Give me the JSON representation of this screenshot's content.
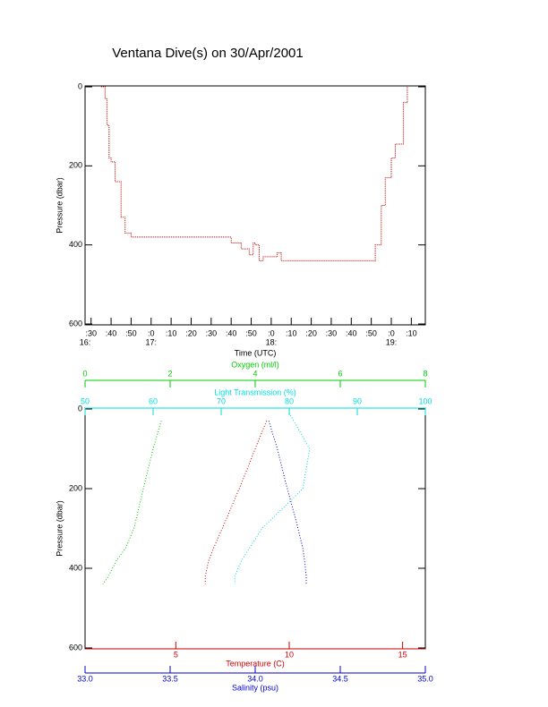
{
  "chart_data": [
    {
      "type": "line",
      "title": "Ventana Dive(s) on 30/Apr/2001",
      "xlabel": "Time (UTC)",
      "ylabel": "Pressure (dbar)",
      "xlim": [
        "16:27",
        "19:17"
      ],
      "ylim": [
        0,
        600
      ],
      "y_reversed": true,
      "xticks": [
        {
          "value": "16:30",
          "label": ":30"
        },
        {
          "value": "16:40",
          "label": ":40"
        },
        {
          "value": "16:50",
          "label": ":50"
        },
        {
          "value": "17:00",
          "label": ":0"
        },
        {
          "value": "17:10",
          "label": ":10"
        },
        {
          "value": "17:20",
          "label": ":20"
        },
        {
          "value": "17:30",
          "label": ":30"
        },
        {
          "value": "17:40",
          "label": ":40"
        },
        {
          "value": "17:50",
          "label": ":50"
        },
        {
          "value": "18:00",
          "label": ":0"
        },
        {
          "value": "18:10",
          "label": ":10"
        },
        {
          "value": "18:20",
          "label": ":20"
        },
        {
          "value": "18:30",
          "label": ":30"
        },
        {
          "value": "18:40",
          "label": ":40"
        },
        {
          "value": "18:50",
          "label": ":50"
        },
        {
          "value": "19:00",
          "label": ":0"
        },
        {
          "value": "19:10",
          "label": ":10"
        }
      ],
      "hour_labels": [
        {
          "value": "16:27",
          "label": "16:"
        },
        {
          "value": "17:00",
          "label": "17:"
        },
        {
          "value": "18:00",
          "label": "18:"
        },
        {
          "value": "19:00",
          "label": "19:"
        }
      ],
      "yticks": [
        0,
        200,
        400,
        600
      ],
      "series": [
        {
          "color": "#cc0000",
          "x": [
            "16:35",
            "16:37",
            "16:38",
            "16:39",
            "16:40",
            "16:42",
            "16:45",
            "16:47",
            "16:50",
            "17:36",
            "17:40",
            "17:45",
            "17:49",
            "17:51",
            "17:52",
            "17:54",
            "17:56",
            "18:00",
            "18:03",
            "18:05",
            "18:10",
            "18:50",
            "18:52",
            "18:55",
            "18:57",
            "19:00",
            "19:02",
            "19:06",
            "19:08"
          ],
          "values": [
            0,
            30,
            97,
            180,
            190,
            240,
            330,
            370,
            380,
            380,
            395,
            410,
            425,
            395,
            400,
            440,
            430,
            430,
            420,
            440,
            440,
            440,
            400,
            300,
            230,
            180,
            145,
            40,
            0
          ]
        }
      ]
    },
    {
      "type": "profile",
      "ylabel": "Pressure (dbar)",
      "ylim": [
        0,
        600
      ],
      "y_reversed": true,
      "yticks": [
        0,
        200,
        400,
        600
      ],
      "x_axes": [
        {
          "label": "Oxygen (ml/l)",
          "color": "#00cc00",
          "position": "top",
          "lim": [
            0,
            8
          ],
          "ticks": [
            0,
            2,
            4,
            6,
            8
          ]
        },
        {
          "label": "Light Transmission (%)",
          "color": "#00dddd",
          "position": "top",
          "lim": [
            50,
            100
          ],
          "ticks": [
            50,
            60,
            70,
            80,
            90,
            100
          ]
        },
        {
          "label": "Temperature (C)",
          "color": "#cc0000",
          "position": "bottom",
          "lim": [
            1,
            16
          ],
          "ticks": [
            5,
            10,
            15
          ]
        },
        {
          "label": "Salinity (psu)",
          "color": "#0000cc",
          "position": "bottom",
          "lim": [
            33,
            35
          ],
          "ticks": [
            {
              "value": 33,
              "label": "33.0"
            },
            {
              "value": 33.5,
              "label": "33.5"
            },
            {
              "value": 34,
              "label": "34.0"
            },
            {
              "value": 34.5,
              "label": "34.5"
            },
            {
              "value": 35,
              "label": "35.0"
            }
          ]
        }
      ],
      "series": [
        {
          "axis": 0,
          "color": "#00cc00",
          "x": [
            1.79,
            1.6,
            1.37,
            1.15,
            0.95,
            0.74,
            0.55,
            0.42
          ],
          "y": [
            30,
            100,
            200,
            300,
            350,
            380,
            420,
            440
          ]
        },
        {
          "axis": 1,
          "color": "#00dddd",
          "x": [
            80,
            83,
            82,
            76,
            73,
            72,
            72
          ],
          "y": [
            10,
            100,
            200,
            300,
            380,
            420,
            440
          ]
        },
        {
          "axis": 2,
          "color": "#cc0000",
          "x": [
            9.0,
            8.5,
            7.9,
            7.2,
            6.7,
            6.45,
            6.3,
            6.3
          ],
          "y": [
            30,
            100,
            186,
            280,
            345,
            380,
            420,
            440
          ]
        },
        {
          "axis": 3,
          "color": "#0000cc",
          "x": [
            34.08,
            34.13,
            34.18,
            34.24,
            34.28,
            34.29,
            34.3,
            34.3
          ],
          "y": [
            30,
            100,
            186,
            280,
            350,
            380,
            420,
            440
          ]
        }
      ]
    }
  ]
}
